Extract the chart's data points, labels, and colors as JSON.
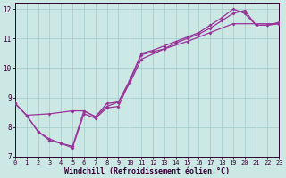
{
  "background_color": "#cce8e4",
  "line_color": "#993399",
  "grid_color": "#aad0cc",
  "axis_color": "#330033",
  "tick_color": "#330033",
  "xlabel": "Windchill (Refroidissement éolien,°C)",
  "xlim": [
    0,
    23
  ],
  "ylim": [
    7,
    12.2
  ],
  "yticks": [
    7,
    8,
    9,
    10,
    11,
    12
  ],
  "xticks": [
    0,
    1,
    2,
    3,
    4,
    5,
    6,
    7,
    8,
    9,
    10,
    11,
    12,
    13,
    14,
    15,
    16,
    17,
    18,
    19,
    20,
    21,
    22,
    23
  ],
  "series1": [
    [
      0,
      8.8
    ],
    [
      1,
      8.4
    ],
    [
      2,
      7.85
    ],
    [
      3,
      7.6
    ],
    [
      4,
      7.45
    ],
    [
      5,
      7.35
    ],
    [
      6,
      8.55
    ],
    [
      7,
      8.35
    ],
    [
      8,
      8.8
    ],
    [
      9,
      8.85
    ],
    [
      10,
      9.6
    ],
    [
      11,
      10.5
    ],
    [
      12,
      10.6
    ],
    [
      13,
      10.75
    ],
    [
      14,
      10.9
    ],
    [
      15,
      11.05
    ],
    [
      16,
      11.2
    ],
    [
      17,
      11.45
    ],
    [
      18,
      11.7
    ],
    [
      19,
      12.0
    ],
    [
      20,
      11.85
    ],
    [
      21,
      11.45
    ],
    [
      22,
      11.45
    ],
    [
      23,
      11.55
    ]
  ],
  "series2": [
    [
      0,
      8.8
    ],
    [
      1,
      8.4
    ],
    [
      2,
      7.85
    ],
    [
      3,
      7.55
    ],
    [
      4,
      7.45
    ],
    [
      5,
      7.3
    ],
    [
      6,
      8.45
    ],
    [
      7,
      8.3
    ],
    [
      8,
      8.65
    ],
    [
      9,
      8.7
    ],
    [
      10,
      9.55
    ],
    [
      11,
      10.45
    ],
    [
      12,
      10.55
    ],
    [
      13,
      10.65
    ],
    [
      14,
      10.85
    ],
    [
      15,
      11.0
    ],
    [
      16,
      11.15
    ],
    [
      17,
      11.35
    ],
    [
      18,
      11.6
    ],
    [
      19,
      11.85
    ],
    [
      20,
      11.95
    ],
    [
      21,
      11.45
    ],
    [
      22,
      11.45
    ],
    [
      23,
      11.5
    ]
  ],
  "series3": [
    [
      0,
      8.8
    ],
    [
      1,
      8.4
    ],
    [
      3,
      8.45
    ],
    [
      5,
      8.55
    ],
    [
      6,
      8.55
    ],
    [
      7,
      8.35
    ],
    [
      8,
      8.7
    ],
    [
      9,
      8.85
    ],
    [
      10,
      9.5
    ],
    [
      11,
      10.3
    ],
    [
      13,
      10.65
    ],
    [
      15,
      10.9
    ],
    [
      17,
      11.2
    ],
    [
      19,
      11.5
    ],
    [
      21,
      11.5
    ],
    [
      23,
      11.5
    ]
  ]
}
